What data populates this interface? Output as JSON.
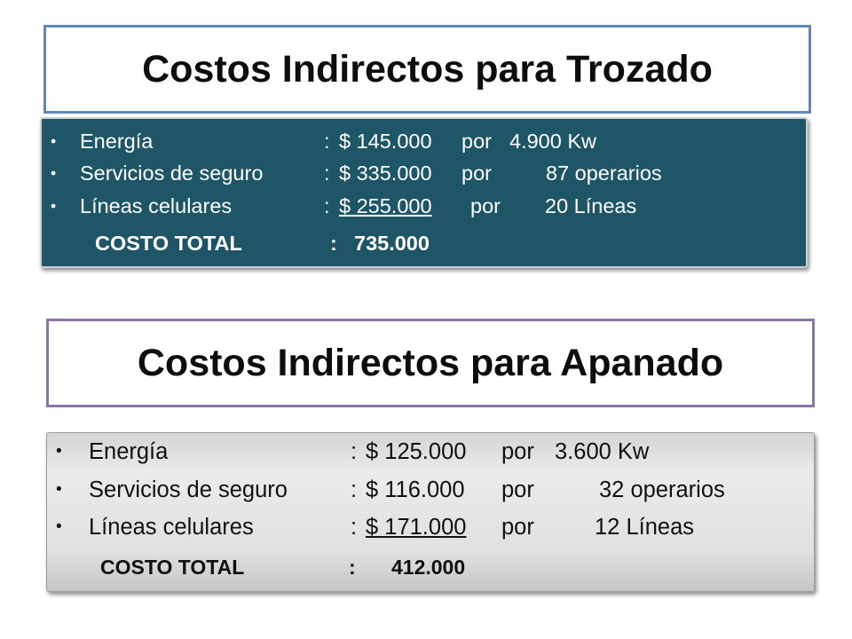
{
  "slides": [
    {
      "title": "Costos Indirectos para Trozado",
      "items": [
        {
          "bullet": "•",
          "label": "Energía",
          "sep": ":",
          "amount": "$ 145.000",
          "por": "por",
          "qty": "4.900 Kw"
        },
        {
          "bullet": "•",
          "label": "Servicios de seguro",
          "sep": ":",
          "amount": "$ 335.000",
          "por": "por",
          "qty": "87 operarios"
        },
        {
          "bullet": "•",
          "label": "Líneas celulares",
          "sep": ":",
          "amount": "$ 255.000",
          "por": "por",
          "qty": "20  Líneas"
        }
      ],
      "total": {
        "label": "COSTO TOTAL",
        "sep": ":",
        "value": "735.000"
      }
    },
    {
      "title": "Costos Indirectos para Apanado",
      "items": [
        {
          "bullet": "•",
          "label": "Energía",
          "sep": ":",
          "amount": "$ 125.000",
          "por": "por",
          "qty": "3.600 Kw"
        },
        {
          "bullet": "•",
          "label": "Servicios de seguro",
          "sep": ":",
          "amount": "$ 116.000",
          "por": "por",
          "qty": "32 operarios"
        },
        {
          "bullet": "•",
          "label": "Líneas celulares",
          "sep": ":",
          "amount": "$ 171.000",
          "por": "por",
          "qty": "12  Líneas"
        }
      ],
      "total": {
        "label": "COSTO TOTAL",
        "sep": ":",
        "value": "412.000"
      }
    }
  ],
  "colors": {
    "panel_1_bg": "#1f5667",
    "panel_2_bg": "#e0e0e0",
    "title_1_border": "#5b87c3",
    "title_2_border": "#8a74a8"
  }
}
